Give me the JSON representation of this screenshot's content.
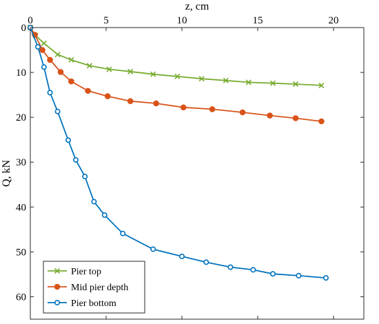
{
  "chart_data": {
    "type": "line",
    "title": "",
    "xlabel": "z, cm",
    "ylabel": "Q, kN",
    "xlim": [
      0,
      22
    ],
    "ylim": [
      0,
      65
    ],
    "y_reversed": true,
    "x_axis_position": "top",
    "xticks": [
      "0",
      "5",
      "10",
      "15",
      "20"
    ],
    "yticks": [
      "0",
      "10",
      "20",
      "30",
      "40",
      "50",
      "60"
    ],
    "grid": false,
    "legend_position": "bottom-left",
    "series": [
      {
        "name": "Pier top",
        "color": "#77AC30",
        "marker": "x",
        "x": [
          0,
          0.35,
          0.9,
          1.8,
          2.7,
          3.9,
          5.2,
          6.6,
          8.1,
          9.7,
          11.3,
          12.9,
          14.4,
          16.0,
          17.5,
          19.2
        ],
        "y": [
          0,
          1.8,
          3.5,
          6.0,
          7.2,
          8.5,
          9.3,
          9.8,
          10.4,
          10.9,
          11.4,
          11.8,
          12.2,
          12.4,
          12.6,
          12.9
        ]
      },
      {
        "name": "Mid pier depth",
        "color": "#D95319",
        "marker": "o",
        "x": [
          0,
          0.3,
          0.8,
          1.3,
          2.0,
          2.7,
          3.8,
          5.1,
          6.6,
          8.3,
          10.1,
          12.0,
          14.0,
          15.8,
          17.5,
          19.2
        ],
        "y": [
          0,
          1.6,
          5.0,
          7.2,
          9.9,
          12.0,
          14.1,
          15.3,
          16.4,
          16.9,
          17.8,
          18.2,
          18.9,
          19.6,
          20.2,
          20.9
        ]
      },
      {
        "name": "Pier bottom",
        "color": "#0072BD",
        "marker": "o",
        "x": [
          0,
          0.5,
          0.9,
          1.3,
          1.8,
          2.5,
          3.0,
          3.6,
          4.2,
          4.9,
          6.1,
          8.1,
          10.0,
          11.6,
          13.2,
          14.7,
          16.0,
          17.7,
          19.5
        ],
        "y": [
          0,
          4.3,
          8.8,
          14.5,
          18.7,
          25.1,
          29.5,
          33.2,
          38.8,
          41.8,
          45.9,
          49.4,
          51.0,
          52.3,
          53.4,
          54.0,
          54.9,
          55.3,
          55.8
        ]
      }
    ]
  }
}
